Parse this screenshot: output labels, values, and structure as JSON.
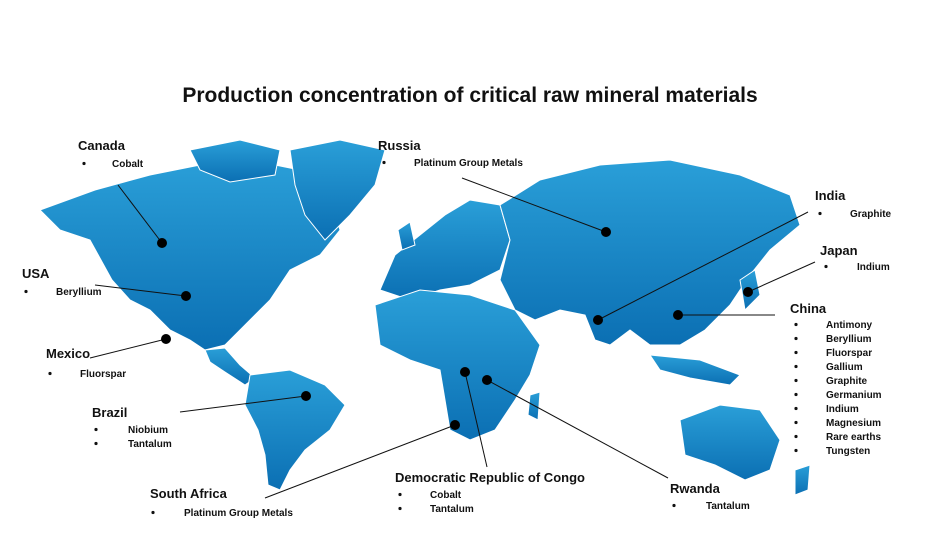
{
  "title": "Production concentration of critical raw mineral materials",
  "countries": [
    {
      "name": "Canada",
      "materials": [
        "Cobalt"
      ]
    },
    {
      "name": "Russia",
      "materials": [
        "Platinum Group Metals"
      ]
    },
    {
      "name": "India",
      "materials": [
        "Graphite"
      ]
    },
    {
      "name": "Japan",
      "materials": [
        "Indium"
      ]
    },
    {
      "name": "China",
      "materials": [
        "Antimony",
        "Beryllium",
        "Fluorspar",
        "Gallium",
        "Graphite",
        "Germanium",
        "Indium",
        "Magnesium",
        "Rare earths",
        "Tungsten"
      ]
    },
    {
      "name": "USA",
      "materials": [
        "Beryllium"
      ]
    },
    {
      "name": "Mexico",
      "materials": [
        "Fluorspar"
      ]
    },
    {
      "name": "Brazil",
      "materials": [
        "Niobium",
        "Tantalum"
      ]
    },
    {
      "name": "South Africa",
      "materials": [
        "Platinum Group Metals"
      ]
    },
    {
      "name": "Democratic Republic of Congo",
      "materials": [
        "Cobalt",
        "Tantalum"
      ]
    },
    {
      "name": "Rwanda",
      "materials": [
        "Tantalum"
      ]
    }
  ]
}
